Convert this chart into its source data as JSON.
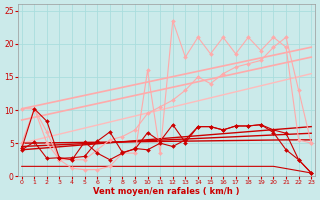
{
  "background_color": "#cbeaea",
  "grid_color": "#aadddd",
  "xlabel": "Vent moyen/en rafales ( km/h )",
  "xlabel_color": "#cc0000",
  "tick_color": "#cc0000",
  "xlim": [
    -0.3,
    23.3
  ],
  "ylim": [
    0,
    26
  ],
  "yticks": [
    0,
    5,
    10,
    15,
    20,
    25
  ],
  "xticks": [
    0,
    1,
    2,
    3,
    4,
    5,
    6,
    7,
    8,
    9,
    10,
    11,
    12,
    13,
    14,
    15,
    16,
    17,
    18,
    19,
    20,
    21,
    22,
    23
  ],
  "series": [
    {
      "x": [
        0,
        23
      ],
      "y": [
        10.2,
        19.5
      ],
      "color": "#ffaaaa",
      "linewidth": 1.2,
      "marker": null,
      "markersize": 0,
      "zorder": 2
    },
    {
      "x": [
        0,
        23
      ],
      "y": [
        8.5,
        18.0
      ],
      "color": "#ffaaaa",
      "linewidth": 1.2,
      "marker": null,
      "markersize": 0,
      "zorder": 2
    },
    {
      "x": [
        0,
        23
      ],
      "y": [
        5.0,
        15.5
      ],
      "color": "#ffbbbb",
      "linewidth": 1.0,
      "marker": null,
      "markersize": 0,
      "zorder": 2
    },
    {
      "x": [
        0,
        1,
        2,
        3,
        4,
        5,
        6,
        7,
        8,
        9,
        10,
        11,
        12,
        13,
        14,
        15,
        16,
        17,
        18,
        19,
        20,
        21,
        22,
        23
      ],
      "y": [
        10.2,
        10.2,
        6.7,
        2.5,
        1.2,
        1.0,
        1.0,
        1.5,
        3.5,
        3.5,
        16.0,
        3.5,
        23.5,
        18.0,
        21.0,
        18.5,
        21.0,
        18.5,
        21.0,
        19.0,
        21.0,
        19.5,
        5.5,
        5.0
      ],
      "color": "#ffaaaa",
      "linewidth": 0.8,
      "marker": "D",
      "markersize": 2.0,
      "zorder": 4
    },
    {
      "x": [
        0,
        1,
        2,
        3,
        4,
        5,
        6,
        7,
        8,
        9,
        10,
        11,
        12,
        13,
        14,
        15,
        16,
        17,
        18,
        19,
        20,
        21,
        22,
        23
      ],
      "y": [
        5.0,
        10.2,
        5.0,
        2.5,
        2.5,
        2.5,
        4.0,
        5.5,
        6.0,
        7.0,
        9.5,
        10.5,
        11.5,
        13.0,
        15.0,
        14.0,
        15.5,
        16.5,
        17.0,
        17.5,
        19.5,
        21.0,
        13.0,
        5.0
      ],
      "color": "#ffaaaa",
      "linewidth": 0.8,
      "marker": "D",
      "markersize": 2.0,
      "zorder": 4
    },
    {
      "x": [
        0,
        20,
        23
      ],
      "y": [
        1.5,
        1.5,
        0.5
      ],
      "color": "#cc0000",
      "linewidth": 0.8,
      "marker": null,
      "markersize": 0,
      "zorder": 2
    },
    {
      "x": [
        0,
        21,
        22,
        23
      ],
      "y": [
        5.0,
        5.5,
        5.5,
        5.5
      ],
      "color": "#cc0000",
      "linewidth": 1.0,
      "marker": null,
      "markersize": 0,
      "zorder": 2
    },
    {
      "x": [
        0,
        23
      ],
      "y": [
        4.0,
        7.5
      ],
      "color": "#cc0000",
      "linewidth": 1.0,
      "marker": null,
      "markersize": 0,
      "zorder": 2
    },
    {
      "x": [
        0,
        23
      ],
      "y": [
        4.5,
        6.5
      ],
      "color": "#cc0000",
      "linewidth": 1.0,
      "marker": null,
      "markersize": 0,
      "zorder": 2
    },
    {
      "x": [
        0,
        1,
        2,
        3,
        4,
        5,
        6,
        7,
        8,
        9,
        10,
        11,
        12,
        13,
        14,
        15,
        16,
        17,
        18,
        19,
        20,
        21,
        22,
        23
      ],
      "y": [
        4.0,
        5.2,
        2.7,
        2.8,
        2.5,
        5.2,
        3.5,
        2.5,
        3.5,
        4.2,
        4.0,
        5.0,
        4.5,
        5.5,
        7.5,
        7.5,
        7.0,
        7.6,
        7.6,
        7.8,
        7.0,
        6.5,
        2.5,
        0.5
      ],
      "color": "#cc0000",
      "linewidth": 0.8,
      "marker": "D",
      "markersize": 2.0,
      "zorder": 5
    },
    {
      "x": [
        0,
        1,
        2,
        3,
        4,
        5,
        6,
        7,
        8,
        9,
        10,
        11,
        12,
        13,
        14,
        15,
        16,
        17,
        18,
        19,
        20,
        21,
        22,
        23
      ],
      "y": [
        4.2,
        10.2,
        8.3,
        2.7,
        2.8,
        3.0,
        5.3,
        6.7,
        3.6,
        4.1,
        6.6,
        5.3,
        7.8,
        5.1,
        7.5,
        7.5,
        7.0,
        7.6,
        7.6,
        7.8,
        6.6,
        4.0,
        2.5,
        0.5
      ],
      "color": "#cc0000",
      "linewidth": 0.8,
      "marker": "D",
      "markersize": 2.0,
      "zorder": 5
    }
  ]
}
